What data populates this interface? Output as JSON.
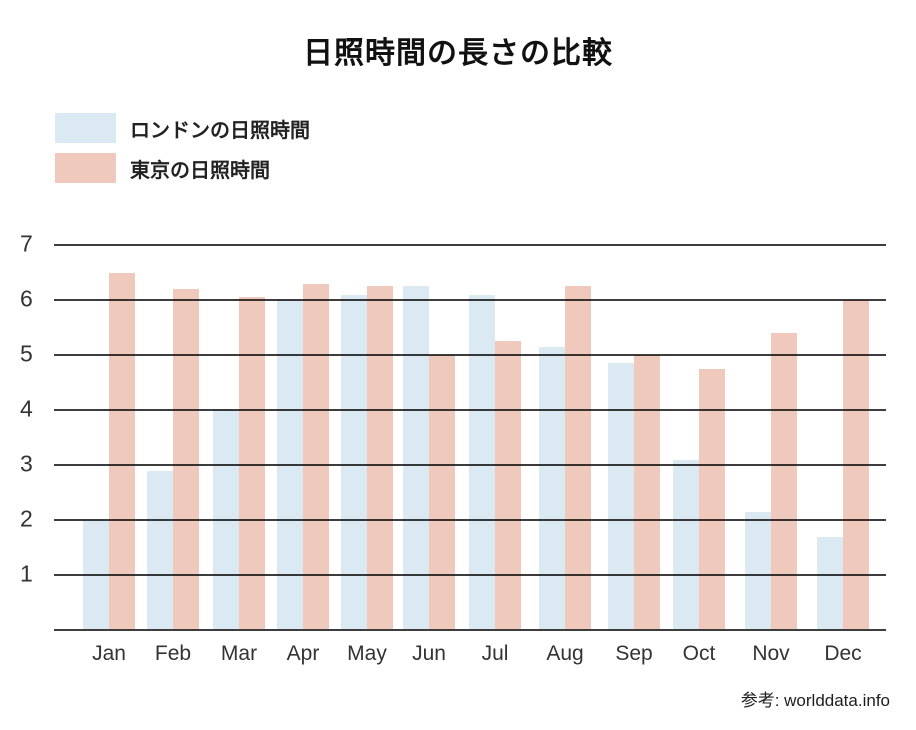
{
  "title": "日照時間の長さの比較",
  "legend": {
    "items": [
      {
        "label": "ロンドンの日照時間",
        "color": "#dbeaf2"
      },
      {
        "label": "東京の日照時間",
        "color": "#efcabc"
      }
    ]
  },
  "footer": {
    "source": "参考: worlddata.info"
  },
  "colors": {
    "london_bar": "#dbeaf2",
    "tokyo_bar": "#efcabc",
    "gridline": "#3d3d3d",
    "background": "#ffffff"
  },
  "chart_data": {
    "type": "bar",
    "title": "日照時間の長さの比較",
    "xlabel": "",
    "ylabel": "",
    "categories": [
      "Jan",
      "Feb",
      "Mar",
      "Apr",
      "May",
      "Jun",
      "Jul",
      "Aug",
      "Sep",
      "Oct",
      "Nov",
      "Dec"
    ],
    "series": [
      {
        "name": "ロンドンの日照時間",
        "color": "#dbeaf2",
        "values": [
          2.0,
          2.9,
          4.0,
          6.0,
          6.1,
          6.25,
          6.1,
          5.15,
          4.85,
          3.1,
          2.15,
          1.7
        ]
      },
      {
        "name": "東京の日照時間",
        "color": "#efcabc",
        "values": [
          6.5,
          6.2,
          6.05,
          6.3,
          6.25,
          5.0,
          5.25,
          6.25,
          5.0,
          4.75,
          5.4,
          6.0
        ]
      }
    ],
    "ylim": [
      0,
      7
    ],
    "yticks": [
      1,
      2,
      3,
      4,
      5,
      6,
      7
    ],
    "grid": true,
    "legend_position": "top-left",
    "source": "参考: worlddata.info"
  }
}
